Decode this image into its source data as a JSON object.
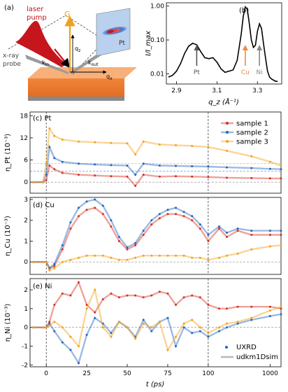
{
  "panel_a": {
    "label": "(a)",
    "laser_label": [
      "laser",
      "pump"
    ],
    "probe_label": [
      "x-ray",
      "probe"
    ],
    "g_label": "G",
    "qz_label": "q",
    "qz_sub": "z",
    "qx_label": "q",
    "qx_sub": "x",
    "kin_label": "k",
    "kin_sub": "in",
    "kout_label": "k",
    "kout_sub": "out",
    "pt_label": "Pt"
  },
  "chart_data": [
    {
      "id": "b",
      "type": "line",
      "panel_label": "(b)",
      "xlabel": "q_z (Å⁻¹)",
      "ylabel": "I/I_max",
      "xlim": [
        2.85,
        3.42
      ],
      "ylim": [
        0.005,
        1.25
      ],
      "yscale": "log",
      "xticks": [
        "2.9",
        "3.1",
        "3.3"
      ],
      "yticks": [
        "0.01",
        "0.10",
        "1.00"
      ],
      "series": [
        {
          "x": [
            2.86,
            2.88,
            2.9,
            2.92,
            2.94,
            2.96,
            2.98,
            3.0,
            3.02,
            3.04,
            3.06,
            3.08,
            3.1,
            3.12,
            3.14,
            3.16,
            3.18,
            3.2,
            3.22,
            3.23,
            3.24,
            3.25,
            3.26,
            3.27,
            3.28,
            3.29,
            3.3,
            3.31,
            3.32,
            3.33,
            3.34,
            3.35,
            3.36,
            3.37,
            3.38,
            3.39,
            3.4
          ],
          "values": [
            0.008,
            0.009,
            0.012,
            0.02,
            0.04,
            0.065,
            0.08,
            0.072,
            0.045,
            0.03,
            0.028,
            0.03,
            0.022,
            0.014,
            0.011,
            0.012,
            0.013,
            0.025,
            0.15,
            0.5,
            0.95,
            0.8,
            0.3,
            0.1,
            0.06,
            0.07,
            0.18,
            0.3,
            0.22,
            0.08,
            0.03,
            0.012,
            0.008,
            0.007,
            0.0065,
            0.006,
            0.006
          ]
        }
      ],
      "annotations": [
        {
          "text": "Pt",
          "x": 3.0,
          "color": "#555555"
        },
        {
          "text": "Cu",
          "x": 3.24,
          "color": "#f08a3c"
        },
        {
          "text": "Ni",
          "x": 3.31,
          "color": "#888888"
        }
      ],
      "grid": false
    },
    {
      "id": "c",
      "type": "scatter",
      "panel_label": "(c)",
      "element": "Pt",
      "ylabel": "η_Pt (10⁻³)",
      "ylim": [
        -3,
        19
      ],
      "yticks": [
        0,
        6,
        12,
        18
      ],
      "xscale": "linear 0–100 ps, log 100–1500 ps",
      "xlim": [
        -10,
        1500
      ],
      "legend": {
        "position": "top-right",
        "entries": [
          "sample 1",
          "sample 2",
          "sample 3"
        ]
      },
      "reference_lines": [
        0,
        3,
        5
      ],
      "series": [
        {
          "name": "sample 1",
          "color": "#d7301f",
          "x": [
            -8,
            -2,
            0,
            2,
            5,
            10,
            20,
            30,
            40,
            50,
            55,
            60,
            70,
            80,
            90,
            100,
            200,
            500,
            1000,
            1500
          ],
          "values": [
            0,
            0,
            0.5,
            4.5,
            3.5,
            2.5,
            2.0,
            1.8,
            1.6,
            1.5,
            -1.0,
            2.0,
            1.5,
            1.6,
            1.5,
            1.4,
            1.2,
            1.1,
            1.0,
            1.0
          ]
        },
        {
          "name": "sample 2",
          "color": "#2166c4",
          "x": [
            -8,
            -2,
            0,
            2,
            5,
            10,
            20,
            30,
            40,
            50,
            55,
            60,
            70,
            80,
            90,
            100,
            200,
            500,
            1000,
            1500
          ],
          "values": [
            0,
            0,
            2.0,
            9.5,
            6.5,
            5.5,
            5.0,
            4.8,
            4.6,
            4.5,
            2.0,
            5.0,
            4.5,
            4.4,
            4.3,
            4.2,
            4.0,
            3.8,
            3.6,
            3.5
          ]
        },
        {
          "name": "sample 3",
          "color": "#f2a21b",
          "x": [
            -8,
            -2,
            0,
            2,
            5,
            10,
            20,
            30,
            40,
            50,
            55,
            60,
            70,
            80,
            90,
            100,
            200,
            500,
            1000,
            1500
          ],
          "values": [
            0,
            0,
            5.0,
            14.5,
            12.5,
            11.5,
            11.0,
            10.8,
            10.6,
            10.5,
            7.5,
            11.0,
            10.2,
            10.0,
            9.8,
            9.5,
            8.5,
            7.0,
            5.5,
            4.5
          ]
        }
      ]
    },
    {
      "id": "d",
      "type": "scatter",
      "panel_label": "(d)",
      "element": "Cu",
      "ylabel": "η_Cu (10⁻³)",
      "ylim": [
        -0.6,
        3.1
      ],
      "yticks": [
        0,
        1,
        2,
        3
      ],
      "xscale": "linear 0–100 ps, log 100–1500 ps",
      "xlim": [
        -10,
        1500
      ],
      "series": [
        {
          "name": "sample 1",
          "color": "#d7301f",
          "x": [
            -8,
            -2,
            0,
            2,
            5,
            10,
            15,
            20,
            25,
            30,
            35,
            40,
            45,
            50,
            55,
            60,
            65,
            70,
            75,
            80,
            85,
            90,
            95,
            100,
            150,
            200,
            300,
            500,
            1000,
            1500
          ],
          "values": [
            0,
            0,
            0,
            -0.3,
            -0.2,
            0.6,
            1.6,
            2.2,
            2.5,
            2.6,
            2.3,
            1.7,
            1.0,
            0.6,
            0.8,
            1.3,
            1.8,
            2.1,
            2.3,
            2.3,
            2.2,
            2.0,
            1.6,
            1.0,
            1.6,
            1.2,
            1.5,
            1.3,
            1.3,
            1.3
          ]
        },
        {
          "name": "sample 2",
          "color": "#2166c4",
          "x": [
            -8,
            -2,
            0,
            2,
            5,
            10,
            15,
            20,
            25,
            30,
            35,
            40,
            45,
            50,
            55,
            60,
            65,
            70,
            75,
            80,
            85,
            90,
            95,
            100,
            150,
            200,
            300,
            500,
            1000,
            1500
          ],
          "values": [
            0,
            0,
            0,
            -0.3,
            -0.1,
            0.8,
            1.9,
            2.6,
            2.9,
            3.0,
            2.7,
            2.0,
            1.2,
            0.7,
            0.9,
            1.5,
            2.0,
            2.3,
            2.5,
            2.6,
            2.4,
            2.2,
            1.8,
            1.3,
            1.7,
            1.4,
            1.6,
            1.5,
            1.5,
            1.5
          ]
        },
        {
          "name": "sample 3",
          "color": "#f2a21b",
          "x": [
            -8,
            -2,
            0,
            2,
            5,
            10,
            15,
            20,
            25,
            30,
            35,
            40,
            45,
            50,
            55,
            60,
            65,
            70,
            75,
            80,
            85,
            90,
            95,
            100,
            150,
            200,
            300,
            500,
            1000,
            1500
          ],
          "values": [
            0,
            0,
            0,
            -0.4,
            -0.3,
            0.0,
            0.1,
            0.2,
            0.3,
            0.3,
            0.3,
            0.2,
            0.1,
            0.1,
            0.2,
            0.3,
            0.3,
            0.3,
            0.3,
            0.3,
            0.3,
            0.2,
            0.2,
            0.1,
            0.2,
            0.3,
            0.4,
            0.6,
            0.75,
            0.8
          ]
        }
      ]
    },
    {
      "id": "e",
      "type": "scatter",
      "panel_label": "(e)",
      "element": "Ni",
      "ylabel": "η_Ni (10⁻³)",
      "xlabel": "t (ps)",
      "ylim": [
        -2.1,
        2.6
      ],
      "yticks": [
        -2,
        -1,
        0,
        1,
        2
      ],
      "xticks": [
        "0",
        "25",
        "50",
        "75",
        "100",
        "1000"
      ],
      "xscale": "linear 0–100 ps, log 100–1500 ps",
      "xlim": [
        -10,
        1500
      ],
      "legend": {
        "position": "bottom-right",
        "entries": [
          "UXRD",
          "udkm1Dsim"
        ]
      },
      "series": [
        {
          "name": "sample 1",
          "color": "#d7301f",
          "x": [
            -8,
            -2,
            0,
            2,
            5,
            10,
            15,
            20,
            25,
            30,
            35,
            40,
            45,
            50,
            55,
            60,
            65,
            70,
            75,
            80,
            85,
            90,
            95,
            100,
            150,
            200,
            300,
            500,
            1000,
            1500
          ],
          "values": [
            0,
            0,
            0,
            0.3,
            1.2,
            1.8,
            1.7,
            2.4,
            1.2,
            0.8,
            1.5,
            1.8,
            1.6,
            1.7,
            1.7,
            1.6,
            1.7,
            1.9,
            1.8,
            1.2,
            1.6,
            1.7,
            1.6,
            1.2,
            1.0,
            1.0,
            1.1,
            1.1,
            1.1,
            1.0
          ]
        },
        {
          "name": "sample 2",
          "color": "#2166c4",
          "x": [
            -8,
            -2,
            0,
            2,
            5,
            10,
            15,
            20,
            25,
            30,
            35,
            40,
            45,
            50,
            55,
            60,
            65,
            70,
            75,
            80,
            85,
            90,
            95,
            100,
            150,
            200,
            300,
            500,
            1000,
            1500
          ],
          "values": [
            0,
            0,
            0,
            0.2,
            -0.2,
            -0.8,
            -1.2,
            -1.9,
            -0.4,
            0.5,
            0.2,
            -0.3,
            0.3,
            0.0,
            -0.5,
            0.4,
            -0.2,
            0.3,
            0.5,
            -1.0,
            0.0,
            -0.3,
            -0.2,
            -0.5,
            -0.2,
            0.0,
            0.2,
            0.4,
            0.6,
            0.7
          ]
        },
        {
          "name": "sample 3",
          "color": "#f2a21b",
          "x": [
            -8,
            -2,
            0,
            2,
            5,
            10,
            15,
            20,
            25,
            30,
            35,
            40,
            45,
            50,
            55,
            60,
            65,
            70,
            75,
            80,
            85,
            90,
            95,
            100,
            150,
            200,
            300,
            500,
            1000,
            1500
          ],
          "values": [
            0,
            0,
            0,
            0.1,
            0.3,
            0.0,
            -0.5,
            -1.0,
            1.0,
            2.0,
            0.0,
            -0.5,
            0.3,
            0.0,
            -0.6,
            0.2,
            0.0,
            0.3,
            -1.2,
            -0.5,
            0.2,
            0.4,
            0.0,
            -0.3,
            0.0,
            0.2,
            0.3,
            0.5,
            0.9,
            1.1
          ]
        }
      ]
    }
  ]
}
